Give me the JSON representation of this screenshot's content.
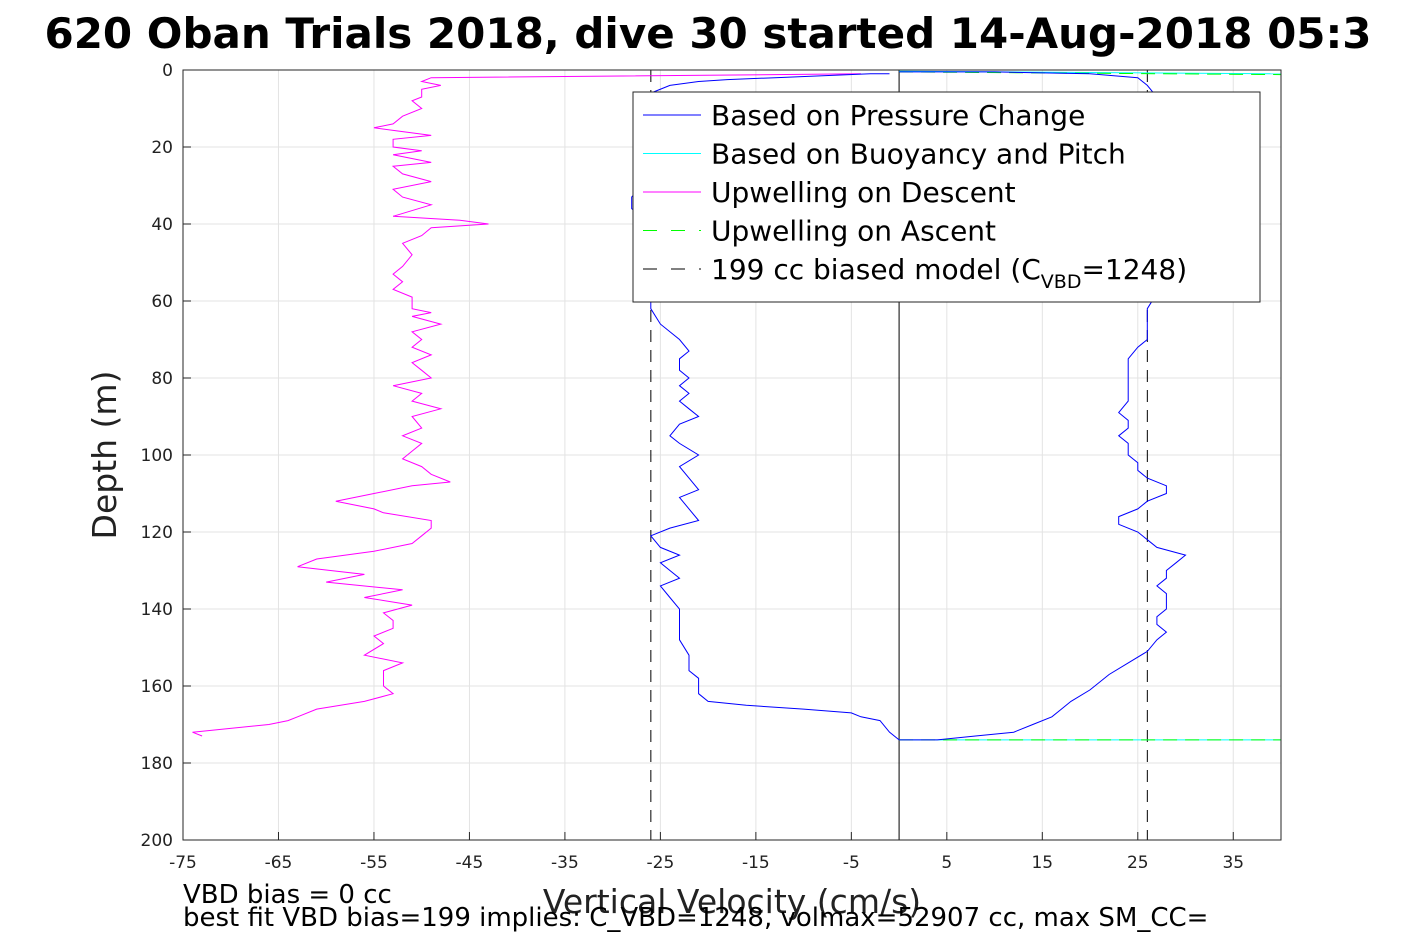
{
  "title": "620 Oban Trials 2018, dive 30 started 14-Aug-2018 05:3",
  "chart_data": {
    "type": "line",
    "xlabel": "Vertical Velocity (cm/s)",
    "ylabel": "Depth (m)",
    "xlim": [
      -75,
      40
    ],
    "ylim": [
      0,
      200
    ],
    "y_reversed": true,
    "grid": true,
    "legend_position": "top-right",
    "x_ticks": [
      "-75",
      "-65",
      "-55",
      "-45",
      "-35",
      "-25",
      "-15",
      "-5",
      "5",
      "15",
      "25",
      "35"
    ],
    "y_ticks": [
      "0",
      "20",
      "40",
      "60",
      "80",
      "100",
      "120",
      "140",
      "160",
      "180",
      "200"
    ],
    "series": [
      {
        "name": "Based on Pressure Change",
        "color": "#0000ff",
        "style": "solid",
        "descent": [
          [
            -1,
            1
          ],
          [
            -3,
            1
          ],
          [
            -8,
            1.5
          ],
          [
            -13,
            2
          ],
          [
            -18,
            2.5
          ],
          [
            -21,
            3
          ],
          [
            -24,
            4
          ],
          [
            -26,
            6
          ],
          [
            -27,
            9
          ],
          [
            -27,
            14
          ],
          [
            -26,
            20
          ],
          [
            -26,
            26
          ],
          [
            -27,
            30
          ],
          [
            -28,
            33
          ],
          [
            -28,
            36
          ],
          [
            -26,
            40
          ],
          [
            -26,
            46
          ],
          [
            -26,
            52
          ],
          [
            -26,
            58
          ],
          [
            -26,
            62
          ],
          [
            -25,
            66
          ],
          [
            -23,
            70
          ],
          [
            -22,
            73
          ],
          [
            -23,
            75
          ],
          [
            -23,
            78
          ],
          [
            -22,
            80
          ],
          [
            -23,
            82
          ],
          [
            -22,
            84
          ],
          [
            -23,
            86
          ],
          [
            -22,
            88
          ],
          [
            -21,
            90
          ],
          [
            -23,
            92
          ],
          [
            -24,
            95
          ],
          [
            -23,
            97
          ],
          [
            -21,
            100
          ],
          [
            -23,
            103
          ],
          [
            -22,
            106
          ],
          [
            -21,
            109
          ],
          [
            -23,
            111
          ],
          [
            -22,
            114
          ],
          [
            -21,
            117
          ],
          [
            -24,
            119
          ],
          [
            -26,
            121
          ],
          [
            -25,
            124
          ],
          [
            -23,
            126
          ],
          [
            -25,
            128
          ],
          [
            -24,
            130
          ],
          [
            -23,
            132
          ],
          [
            -25,
            134
          ],
          [
            -24,
            137
          ],
          [
            -23,
            140
          ],
          [
            -23,
            144
          ],
          [
            -23,
            148
          ],
          [
            -22,
            152
          ],
          [
            -22,
            156
          ],
          [
            -21,
            158
          ],
          [
            -21,
            160
          ],
          [
            -21,
            162
          ],
          [
            -20,
            164
          ],
          [
            -16,
            165
          ],
          [
            -10,
            166
          ],
          [
            -5,
            167
          ],
          [
            -4,
            168
          ],
          [
            -2,
            169
          ],
          [
            -1,
            172
          ],
          [
            0,
            174
          ]
        ],
        "ascent": [
          [
            0,
            174
          ],
          [
            4,
            174
          ],
          [
            8,
            173
          ],
          [
            12,
            172
          ],
          [
            14,
            170
          ],
          [
            16,
            168
          ],
          [
            17,
            166
          ],
          [
            18,
            164
          ],
          [
            20,
            161
          ],
          [
            22,
            157
          ],
          [
            24,
            154
          ],
          [
            26,
            151
          ],
          [
            27,
            148
          ],
          [
            28,
            146
          ],
          [
            27,
            144
          ],
          [
            27,
            142
          ],
          [
            28,
            140
          ],
          [
            28,
            138
          ],
          [
            28,
            136
          ],
          [
            27,
            134
          ],
          [
            28,
            132
          ],
          [
            28,
            130
          ],
          [
            29,
            128
          ],
          [
            30,
            126
          ],
          [
            27,
            124
          ],
          [
            26,
            122
          ],
          [
            25,
            120
          ],
          [
            23,
            118
          ],
          [
            23,
            116
          ],
          [
            25,
            114
          ],
          [
            26,
            112
          ],
          [
            28,
            110
          ],
          [
            28,
            108
          ],
          [
            26,
            106
          ],
          [
            25,
            104
          ],
          [
            25,
            102
          ],
          [
            24,
            100
          ],
          [
            24,
            97
          ],
          [
            23,
            95
          ],
          [
            24,
            93
          ],
          [
            24,
            91
          ],
          [
            23,
            89
          ],
          [
            24,
            86
          ],
          [
            24,
            82
          ],
          [
            24,
            78
          ],
          [
            24,
            75
          ],
          [
            25,
            72
          ],
          [
            26,
            70
          ],
          [
            26,
            66
          ],
          [
            26,
            62
          ],
          [
            27,
            58
          ],
          [
            27,
            54
          ],
          [
            27,
            50
          ],
          [
            27,
            46
          ],
          [
            27,
            42
          ],
          [
            27,
            38
          ],
          [
            27,
            34
          ],
          [
            27,
            30
          ],
          [
            27,
            26
          ],
          [
            27,
            22
          ],
          [
            27,
            18
          ],
          [
            27,
            14
          ],
          [
            27,
            10
          ],
          [
            27,
            7
          ],
          [
            26,
            4
          ],
          [
            25,
            2
          ],
          [
            20,
            1
          ],
          [
            10,
            0.5
          ],
          [
            5,
            0.5
          ],
          [
            0,
            0.5
          ]
        ]
      },
      {
        "name": "Based on Buoyancy and Pitch",
        "color": "#00ffff",
        "style": "solid",
        "points": [
          [
            0,
            0.3
          ],
          [
            40,
            1
          ],
          [
            0,
            174
          ],
          [
            40,
            174
          ]
        ]
      },
      {
        "name": "Upwelling on Descent",
        "color": "#ff00ff",
        "style": "solid",
        "points": [
          [
            -4,
            1
          ],
          [
            -49,
            2
          ],
          [
            -50,
            3
          ],
          [
            -48,
            4
          ],
          [
            -50,
            5
          ],
          [
            -50,
            7
          ],
          [
            -51,
            8
          ],
          [
            -50,
            10
          ],
          [
            -52,
            12
          ],
          [
            -53,
            14
          ],
          [
            -55,
            15
          ],
          [
            -52,
            16
          ],
          [
            -49,
            17
          ],
          [
            -53,
            18
          ],
          [
            -53,
            20
          ],
          [
            -50,
            21
          ],
          [
            -53,
            22
          ],
          [
            -49,
            24
          ],
          [
            -53,
            25
          ],
          [
            -52,
            27
          ],
          [
            -49,
            29
          ],
          [
            -53,
            31
          ],
          [
            -52,
            33
          ],
          [
            -49,
            35
          ],
          [
            -53,
            38
          ],
          [
            -46,
            39
          ],
          [
            -43,
            40
          ],
          [
            -49,
            41
          ],
          [
            -50,
            43
          ],
          [
            -52,
            45
          ],
          [
            -51,
            48
          ],
          [
            -52,
            51
          ],
          [
            -53,
            53
          ],
          [
            -52,
            55
          ],
          [
            -53,
            57
          ],
          [
            -51,
            59
          ],
          [
            -51,
            62
          ],
          [
            -49,
            63
          ],
          [
            -51,
            64
          ],
          [
            -48,
            66
          ],
          [
            -51,
            68
          ],
          [
            -50,
            70
          ],
          [
            -51,
            72
          ],
          [
            -49,
            74
          ],
          [
            -51,
            76
          ],
          [
            -50,
            78
          ],
          [
            -49,
            80
          ],
          [
            -53,
            82
          ],
          [
            -50,
            84
          ],
          [
            -51,
            86
          ],
          [
            -48,
            88
          ],
          [
            -51,
            90
          ],
          [
            -50,
            93
          ],
          [
            -52,
            95
          ],
          [
            -50,
            97
          ],
          [
            -51,
            99
          ],
          [
            -52,
            101
          ],
          [
            -50,
            103
          ],
          [
            -49,
            105
          ],
          [
            -47,
            107
          ],
          [
            -51,
            108
          ],
          [
            -55,
            110
          ],
          [
            -59,
            112
          ],
          [
            -55,
            114
          ],
          [
            -54,
            115
          ],
          [
            -49,
            117
          ],
          [
            -49,
            119
          ],
          [
            -50,
            121
          ],
          [
            -51,
            123
          ],
          [
            -55,
            125
          ],
          [
            -61,
            127
          ],
          [
            -63,
            129
          ],
          [
            -56,
            131
          ],
          [
            -60,
            133
          ],
          [
            -52,
            135
          ],
          [
            -56,
            137
          ],
          [
            -51,
            139
          ],
          [
            -54,
            141
          ],
          [
            -53,
            143
          ],
          [
            -53,
            145
          ],
          [
            -55,
            147
          ],
          [
            -54,
            149
          ],
          [
            -56,
            152
          ],
          [
            -52,
            154
          ],
          [
            -54,
            156
          ],
          [
            -54,
            158
          ],
          [
            -54,
            160
          ],
          [
            -53,
            162
          ],
          [
            -56,
            164
          ],
          [
            -61,
            166
          ],
          [
            -63,
            168
          ],
          [
            -64,
            169
          ],
          [
            -66,
            170
          ],
          [
            -74,
            172
          ],
          [
            -73,
            173
          ]
        ]
      },
      {
        "name": "Upwelling on Ascent",
        "color": "#00ff00",
        "style": "dashed",
        "points": [
          [
            0,
            0.5
          ],
          [
            40,
            1.2
          ],
          [
            0,
            174
          ],
          [
            40,
            174
          ]
        ]
      },
      {
        "name": "199 cc biased model (C_VBD=1248)",
        "color": "#000000",
        "style": "dashed",
        "x_descent": -26,
        "x_ascent": 26,
        "y_range": [
          0,
          200
        ]
      }
    ]
  },
  "legend": [
    {
      "label": "Based on Pressure Change",
      "color": "#0000ff",
      "style": "solid"
    },
    {
      "label": "Based on Buoyancy and Pitch",
      "color": "#00ffff",
      "style": "solid"
    },
    {
      "label": "Upwelling on Descent",
      "color": "#ff00ff",
      "style": "solid"
    },
    {
      "label": "Upwelling on Ascent",
      "color": "#00ff00",
      "style": "dashed"
    },
    {
      "label_pre": "199 cc biased model (C",
      "label_sub": "VBD",
      "label_post": "=1248)",
      "color": "#000000",
      "style": "dashed"
    }
  ],
  "notes": {
    "line1": "VBD bias = 0 cc",
    "line2": "best fit VBD bias=199 implies: C_VBD=1248, volmax=52907 cc, max SM_CC="
  }
}
